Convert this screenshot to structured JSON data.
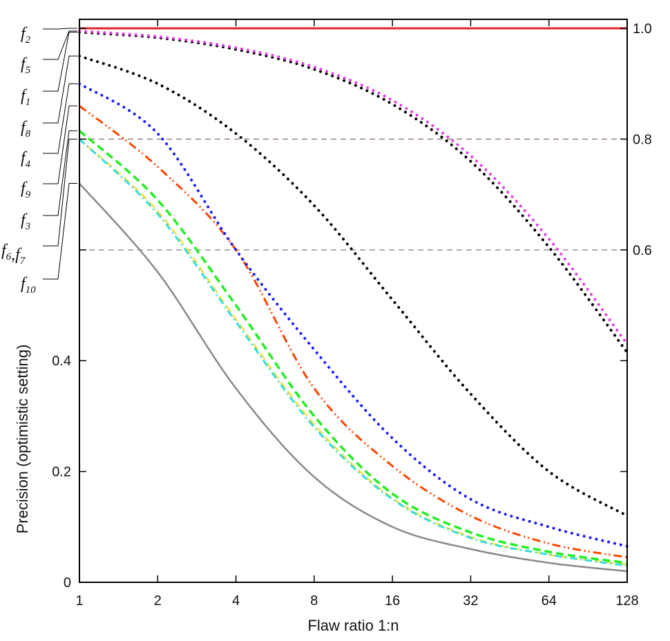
{
  "chart_data": {
    "type": "line",
    "xlabel": "Flaw ratio 1:n",
    "ylabel": "Precision (optimistic setting)",
    "x_scale": "log2",
    "xlim": [
      1,
      128
    ],
    "ylim": [
      0,
      1.0
    ],
    "x_ticks": [
      1,
      2,
      4,
      8,
      16,
      32,
      64,
      128
    ],
    "x_tick_labels": [
      "1",
      "2",
      "4",
      "8",
      "16",
      "32",
      "64",
      "128"
    ],
    "y_ticks_left": [
      0,
      0.2,
      0.4
    ],
    "y_tick_labels_left": [
      "0",
      "0.2",
      "0.4"
    ],
    "y_ticks_right": [
      0.6,
      0.8,
      1.0
    ],
    "y_tick_labels_right": [
      "0.6",
      "0.8",
      "1.0"
    ],
    "reference_lines": [
      0.6,
      0.8
    ],
    "grid": false,
    "legend": "left-outside",
    "series": [
      {
        "name": "f2",
        "color": "#e8202a",
        "style": "solid",
        "width": 3,
        "x": [
          1,
          128
        ],
        "y": [
          1.0,
          1.0
        ]
      },
      {
        "name": "f5",
        "color": "#e040e0",
        "style": "dotted",
        "width": 4,
        "x": [
          1,
          2,
          4,
          8,
          16,
          32,
          64,
          128
        ],
        "y": [
          0.995,
          0.985,
          0.965,
          0.93,
          0.87,
          0.77,
          0.62,
          0.43
        ]
      },
      {
        "name": "f1",
        "color": "#000000",
        "style": "dotted",
        "width": 4,
        "x": [
          1,
          2,
          4,
          8,
          16,
          32,
          64,
          128
        ],
        "y": [
          0.993,
          0.983,
          0.962,
          0.926,
          0.863,
          0.76,
          0.605,
          0.415
        ]
      },
      {
        "name": "f8",
        "color": "#000000",
        "style": "dotted",
        "width": 4,
        "x": [
          1,
          2,
          4,
          8,
          16,
          32,
          64,
          128
        ],
        "y": [
          0.95,
          0.9,
          0.81,
          0.68,
          0.51,
          0.34,
          0.2,
          0.12
        ]
      },
      {
        "name": "f4",
        "color": "#1a1aff",
        "style": "dotted",
        "width": 4,
        "x": [
          1,
          2,
          4,
          8,
          16,
          32,
          64,
          128
        ],
        "y": [
          0.9,
          0.81,
          0.6,
          0.42,
          0.26,
          0.15,
          0.1,
          0.065
        ]
      },
      {
        "name": "f9",
        "color": "#ff4400",
        "style": "dashdotdot",
        "width": 3,
        "x": [
          1,
          2,
          4,
          8,
          16,
          32,
          64,
          128
        ],
        "y": [
          0.86,
          0.75,
          0.6,
          0.35,
          0.21,
          0.12,
          0.07,
          0.045
        ]
      },
      {
        "name": "f3",
        "color": "#22ee22",
        "style": "dashed",
        "width": 3.5,
        "x": [
          1,
          2,
          4,
          8,
          16,
          32,
          64,
          128
        ],
        "y": [
          0.815,
          0.69,
          0.5,
          0.3,
          0.16,
          0.09,
          0.055,
          0.035
        ]
      },
      {
        "name": "f6",
        "color": "#33dddd",
        "style": "dashdot",
        "width": 3,
        "x": [
          1,
          2,
          4,
          8,
          16,
          32,
          64,
          128
        ],
        "y": [
          0.8,
          0.665,
          0.47,
          0.28,
          0.15,
          0.08,
          0.05,
          0.03
        ]
      },
      {
        "name": "f7",
        "color": "#f0e040",
        "style": "dashed",
        "width": 2.5,
        "x": [
          1,
          2,
          4,
          8,
          16,
          32,
          64,
          128
        ],
        "y": [
          0.8,
          0.67,
          0.475,
          0.285,
          0.152,
          0.082,
          0.05,
          0.032
        ]
      },
      {
        "name": "f10",
        "color": "#888888",
        "style": "solid",
        "width": 2.5,
        "x": [
          1,
          2,
          4,
          8,
          16,
          32,
          64,
          128
        ],
        "y": [
          0.72,
          0.56,
          0.35,
          0.19,
          0.1,
          0.06,
          0.035,
          0.02
        ]
      }
    ],
    "labels": [
      {
        "text": "f",
        "sub": "2",
        "series": [
          "f2"
        ]
      },
      {
        "text": "f",
        "sub": "5",
        "series": [
          "f5"
        ]
      },
      {
        "text": "f",
        "sub": "1",
        "series": [
          "f1"
        ]
      },
      {
        "text": "f",
        "sub": "8",
        "series": [
          "f8"
        ]
      },
      {
        "text": "f",
        "sub": "4",
        "series": [
          "f4"
        ]
      },
      {
        "text": "f",
        "sub": "9",
        "series": [
          "f9"
        ]
      },
      {
        "text": "f",
        "sub": "3",
        "series": [
          "f3"
        ]
      },
      {
        "text": "f6,f7",
        "parts": [
          [
            "f",
            "6"
          ],
          [
            "f",
            "7"
          ]
        ],
        "series": [
          "f6",
          "f7"
        ]
      },
      {
        "text": "f",
        "sub": "10",
        "series": [
          "f10"
        ]
      }
    ]
  }
}
